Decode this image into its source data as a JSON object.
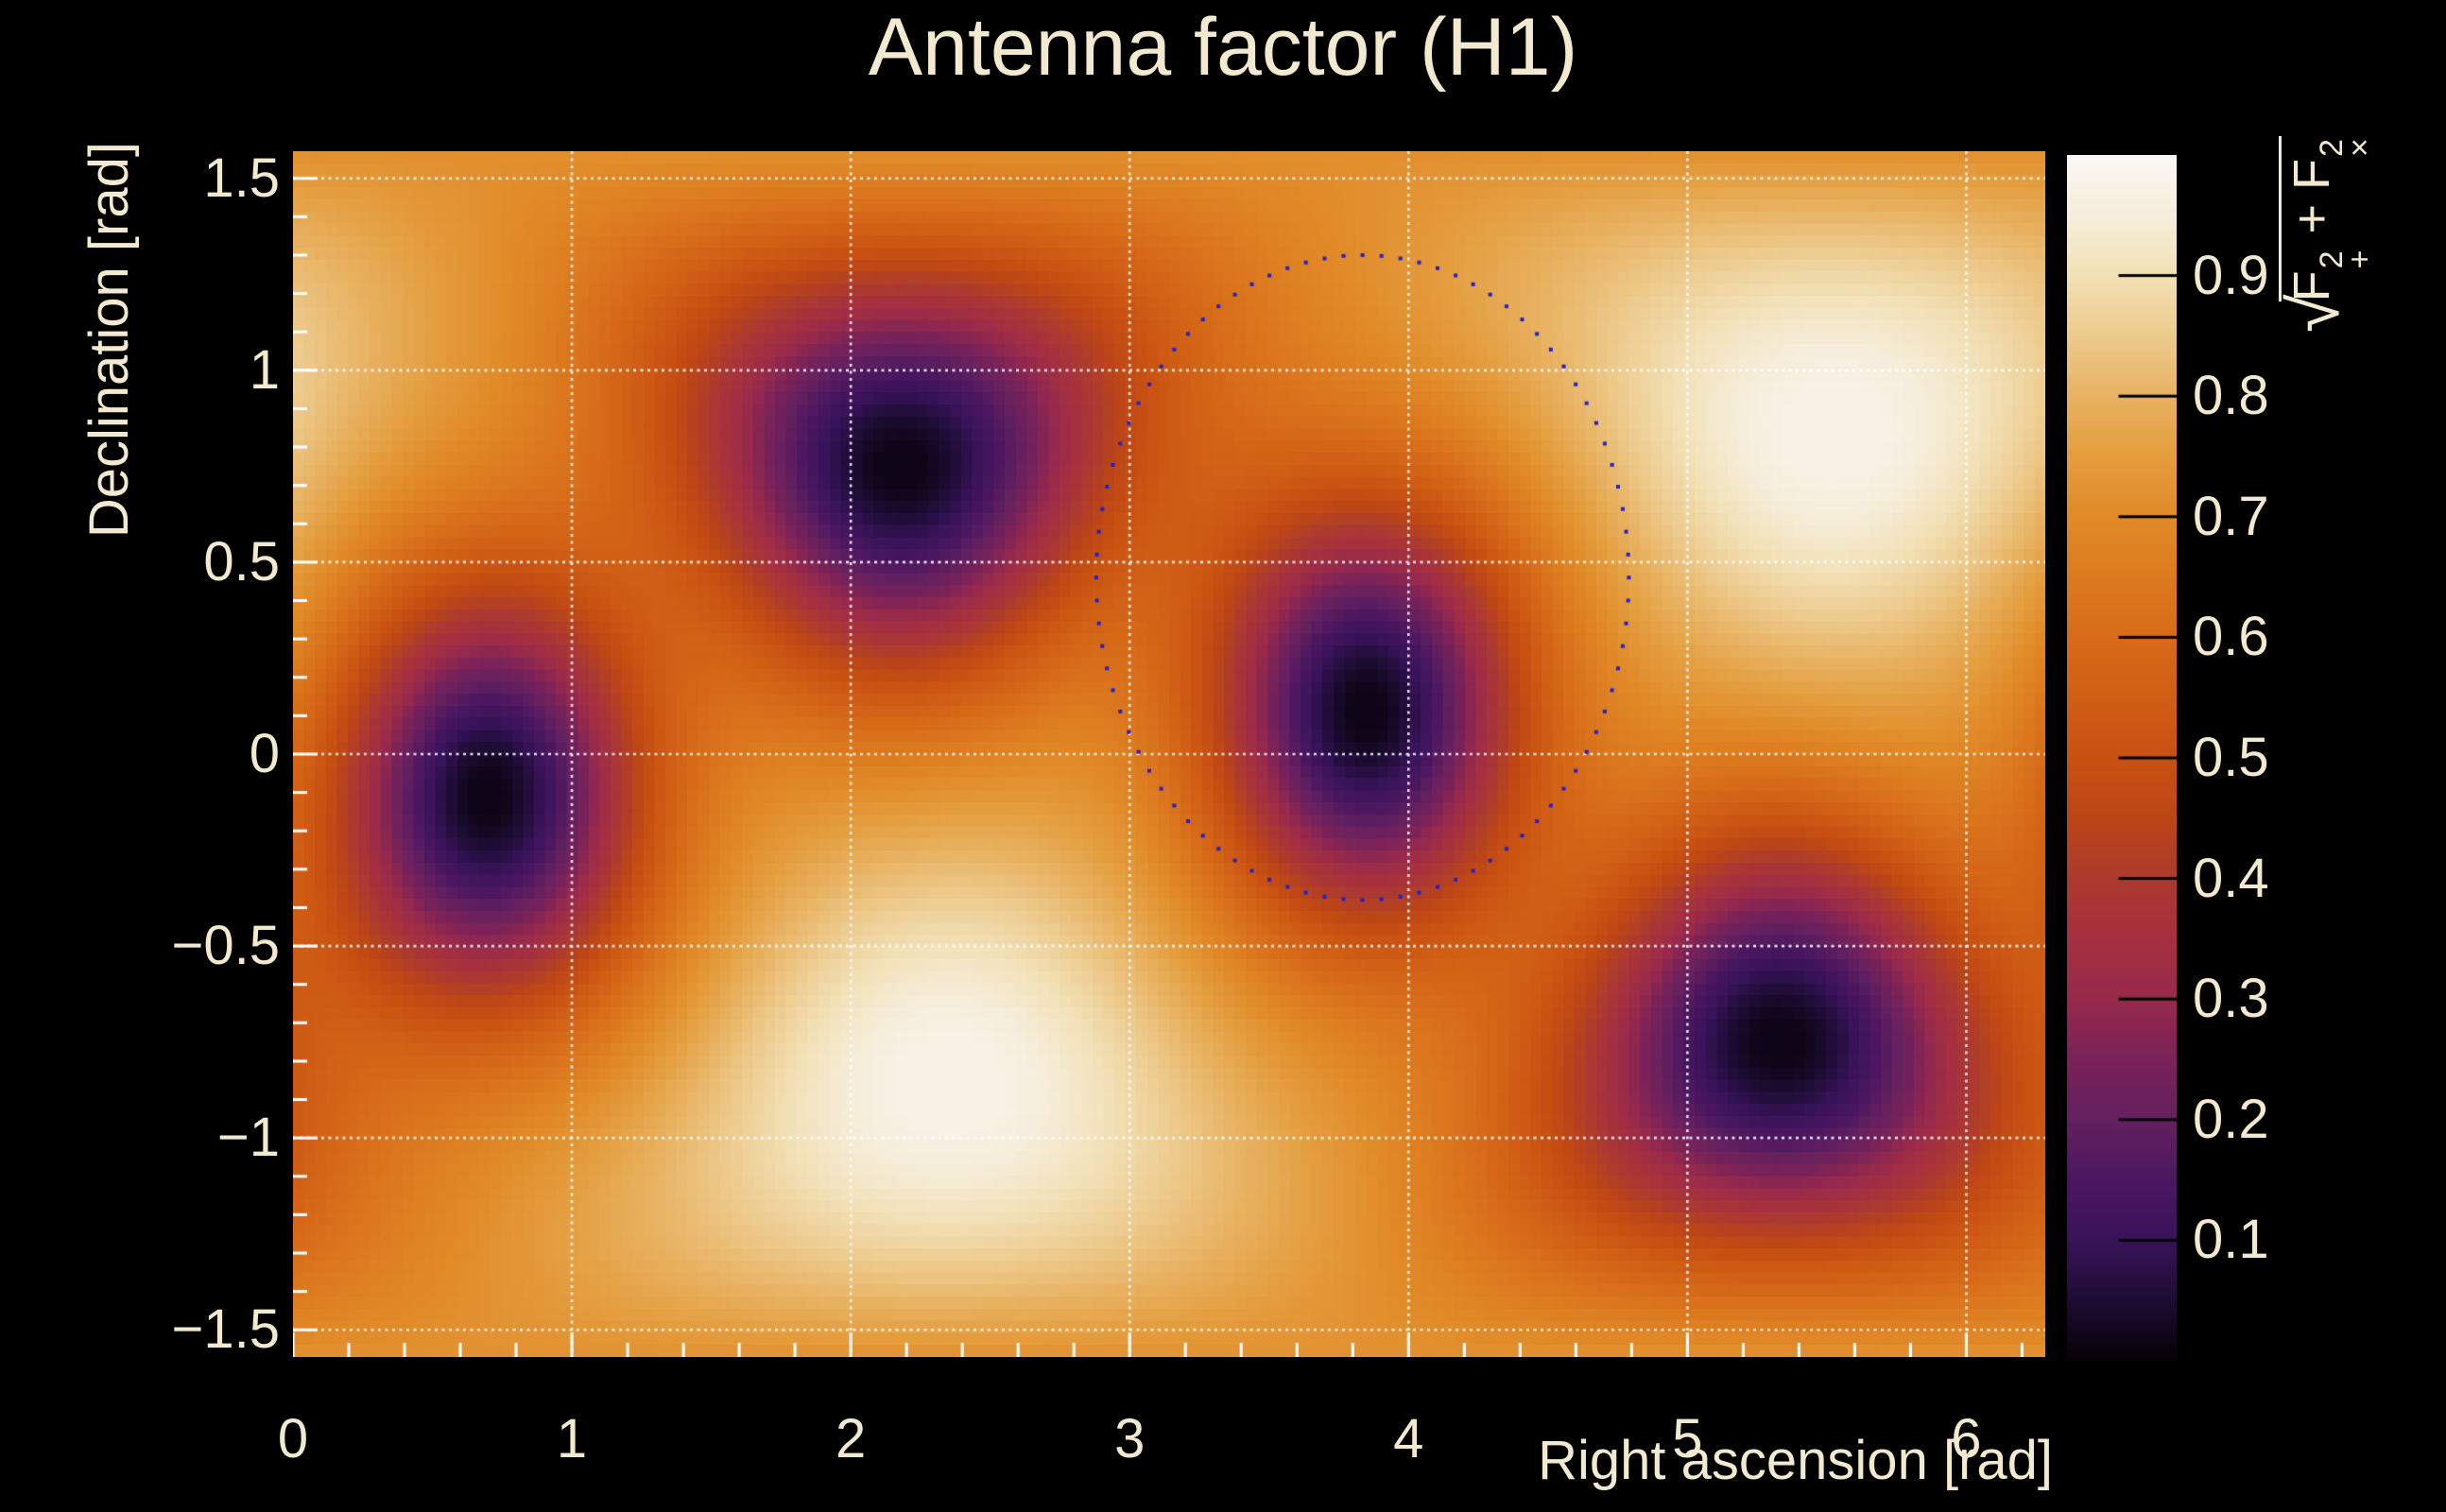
{
  "title": "Antenna factor (H1)",
  "axes": {
    "x": {
      "label": "Right ascension [rad]",
      "min": 0,
      "max": 6.2832,
      "tick_values": [
        0,
        1,
        2,
        3,
        4,
        5,
        6
      ],
      "tick_labels": [
        "0",
        "1",
        "2",
        "3",
        "4",
        "5",
        "6"
      ],
      "minor_step": 0.2
    },
    "y": {
      "label": "Declination [rad]",
      "min": -1.5708,
      "max": 1.5708,
      "tick_values": [
        -1.5,
        -1,
        -0.5,
        0,
        0.5,
        1,
        1.5
      ],
      "tick_labels": [
        "−1.5",
        "−1",
        "−0.5",
        "0",
        "0.5",
        "1",
        "1.5"
      ],
      "minor_step": 0.1
    }
  },
  "colorbar": {
    "label_plain": "sqrt(F+^2 + Fx^2)",
    "formula": {
      "radical": "√",
      "t1": "F",
      "t1_sup": "2",
      "t1_sub": "+",
      "op": "+",
      "t2": "F",
      "t2_sup": "2",
      "t2_sub": "×"
    },
    "min": 0,
    "max": 1,
    "tick_values": [
      0.1,
      0.2,
      0.3,
      0.4,
      0.5,
      0.6,
      0.7,
      0.8,
      0.9
    ],
    "tick_labels": [
      "0.1",
      "0.2",
      "0.3",
      "0.4",
      "0.5",
      "0.6",
      "0.7",
      "0.8",
      "0.9"
    ]
  },
  "chart_data": {
    "type": "heatmap",
    "title": "Antenna factor (H1)",
    "xlabel": "Right ascension [rad]",
    "ylabel": "Declination [rad]",
    "zlabel": "sqrt(F+^2 + Fx^2)",
    "x_range": [
      0,
      6.2832
    ],
    "y_range": [
      -1.5708,
      1.5708
    ],
    "z_range": [
      0,
      1
    ],
    "grid_on": true,
    "grid_bins": [
      160,
      100
    ],
    "field_model": {
      "comment": "antenna power pattern: smooth background with 2 antipodal maxima and 4 antipodal nulls, gaussian in angular distance on the sphere",
      "background": 0.71,
      "maxima": [
        {
          "ra": 2.35,
          "dec": -0.86,
          "peak_value": 0.97,
          "amp": 0.27,
          "sigma": 0.45
        },
        {
          "ra": 5.52,
          "dec": 0.84,
          "peak_value": 0.97,
          "amp": 0.27,
          "sigma": 0.45
        }
      ],
      "minima": [
        {
          "ra": 0.7,
          "dec": -0.11,
          "min_value": 0.02,
          "depth": 0.7,
          "sigma": 0.38
        },
        {
          "ra": 2.18,
          "dec": 0.75,
          "min_value": 0.02,
          "depth": 0.7,
          "sigma": 0.38
        },
        {
          "ra": 3.85,
          "dec": 0.11,
          "min_value": 0.02,
          "depth": 0.7,
          "sigma": 0.38
        },
        {
          "ra": 5.33,
          "dec": -0.75,
          "min_value": 0.02,
          "depth": 0.7,
          "sigma": 0.38
        }
      ],
      "clamp": [
        0.02,
        0.97
      ]
    },
    "ring_overlay": {
      "marker": "small blue square dots",
      "color": "#2222cc",
      "marker_px": 4,
      "n_points": 88,
      "ra_center": 3.835,
      "dec_center": 0.46,
      "ra_radius": 0.955,
      "dec_radius": 0.84
    },
    "colormap_stops": [
      [
        0.0,
        "#060107"
      ],
      [
        0.05,
        "#1d0c33"
      ],
      [
        0.1,
        "#38135a"
      ],
      [
        0.15,
        "#4c1760"
      ],
      [
        0.2,
        "#64205f"
      ],
      [
        0.25,
        "#7a2259"
      ],
      [
        0.3,
        "#97294c"
      ],
      [
        0.35,
        "#a5303f"
      ],
      [
        0.4,
        "#ac3a2f"
      ],
      [
        0.45,
        "#bc4517"
      ],
      [
        0.5,
        "#c85112"
      ],
      [
        0.55,
        "#d05e15"
      ],
      [
        0.6,
        "#d76b19"
      ],
      [
        0.65,
        "#dc7a1f"
      ],
      [
        0.7,
        "#e18a28"
      ],
      [
        0.75,
        "#e49d3e"
      ],
      [
        0.8,
        "#e8b262"
      ],
      [
        0.85,
        "#edca8d"
      ],
      [
        0.9,
        "#f2e0b6"
      ],
      [
        0.95,
        "#f6eedc"
      ],
      [
        1.0,
        "#faf8f4"
      ]
    ]
  },
  "colors": {
    "background": "#000000",
    "text": "#f2e9ce",
    "grid": "#ffffff",
    "ticks": "#ffffff",
    "ring": "#2222cc"
  }
}
